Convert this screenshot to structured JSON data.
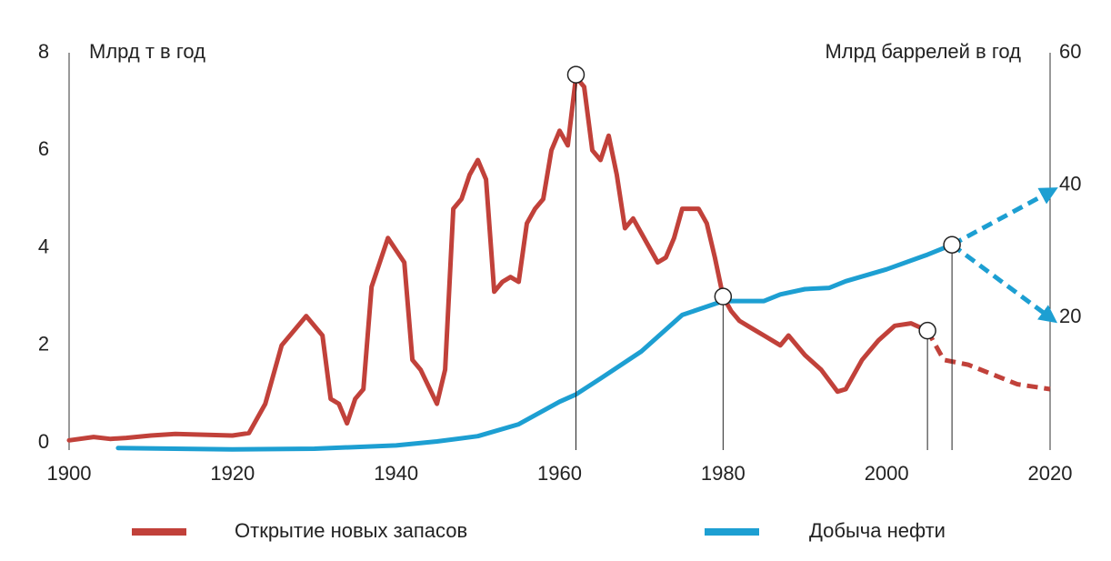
{
  "chart_data": {
    "type": "line",
    "y_label": "Млрд т в год",
    "y2_label": "Млрд баррелей в год",
    "xlim": [
      1900,
      2020
    ],
    "xticks": [
      1900,
      1920,
      1940,
      1960,
      1980,
      2000,
      2020
    ],
    "ylim": [
      0,
      8
    ],
    "yticks": [
      0,
      2,
      4,
      6,
      8
    ],
    "y2lim": [
      0,
      60
    ],
    "y2ticks": [
      20,
      40,
      60
    ],
    "legend": "bottom",
    "series": [
      {
        "name": "Открытие новых запасов",
        "color": "#c1413a",
        "axis": "y",
        "x": [
          1900,
          1903,
          1905,
          1907,
          1910,
          1913,
          1920,
          1922,
          1924,
          1926,
          1929,
          1931,
          1932,
          1933,
          1934,
          1935,
          1936,
          1937,
          1939,
          1941,
          1942,
          1943,
          1945,
          1946,
          1947,
          1948,
          1949,
          1950,
          1951,
          1952,
          1953,
          1954,
          1955,
          1956,
          1957,
          1958,
          1959,
          1960,
          1961,
          1962,
          1963,
          1964,
          1965,
          1966,
          1967,
          1968,
          1969,
          1970,
          1971,
          1972,
          1973,
          1974,
          1975,
          1976,
          1977,
          1978,
          1979,
          1980,
          1981,
          1982,
          1983,
          1984,
          1985,
          1987,
          1988,
          1990,
          1992,
          1994,
          1995,
          1997,
          1999,
          2001,
          2003,
          2005
        ],
        "values": [
          0.05,
          0.12,
          0.08,
          0.1,
          0.15,
          0.18,
          0.15,
          0.2,
          0.8,
          2.0,
          2.6,
          2.2,
          0.9,
          0.8,
          0.4,
          0.9,
          1.1,
          3.2,
          4.2,
          3.7,
          1.7,
          1.5,
          0.8,
          1.5,
          4.8,
          5.0,
          5.5,
          5.8,
          5.4,
          3.1,
          3.3,
          3.4,
          3.3,
          4.5,
          4.8,
          5.0,
          6.0,
          6.4,
          6.1,
          7.5,
          7.3,
          6.0,
          5.8,
          6.3,
          5.5,
          4.4,
          4.6,
          4.3,
          4.0,
          3.7,
          3.8,
          4.2,
          4.8,
          4.8,
          4.8,
          4.5,
          3.8,
          3.0,
          2.7,
          2.5,
          2.4,
          2.3,
          2.2,
          2.0,
          2.2,
          1.8,
          1.5,
          1.05,
          1.1,
          1.7,
          2.1,
          2.4,
          2.45,
          2.3
        ],
        "forecasts": [
          {
            "x": [
              2005,
              2007,
              2010,
              2013,
              2016,
              2020
            ],
            "values": [
              2.3,
              1.7,
              1.6,
              1.4,
              1.2,
              1.1
            ]
          }
        ]
      },
      {
        "name": "Добыча нефти",
        "color": "#1d9fd2",
        "axis": "y2",
        "x": [
          1906,
          1920,
          1930,
          1940,
          1945,
          1950,
          1955,
          1960,
          1962,
          1965,
          1970,
          1975,
          1980,
          1985,
          1987,
          1990,
          1993,
          1995,
          2000,
          2005,
          2008
        ],
        "values": [
          0.3,
          0.1,
          0.2,
          0.7,
          1.3,
          2.1,
          3.9,
          7.3,
          8.4,
          10.8,
          14.9,
          20.4,
          22.5,
          22.5,
          23.5,
          24.3,
          24.5,
          25.5,
          27.3,
          29.5,
          31
        ],
        "forecasts": [
          {
            "x": [
              2008,
              2020
            ],
            "values": [
              31,
              39
            ]
          },
          {
            "x": [
              2008,
              2020
            ],
            "values": [
              31,
              20
            ]
          }
        ]
      }
    ],
    "markers": [
      {
        "x": 1962,
        "y": 7.55
      },
      {
        "x": 1980,
        "y": 3.0
      },
      {
        "x": 2005,
        "y": 2.3
      },
      {
        "x": 2008,
        "y": 31,
        "axis": "y2"
      }
    ]
  }
}
